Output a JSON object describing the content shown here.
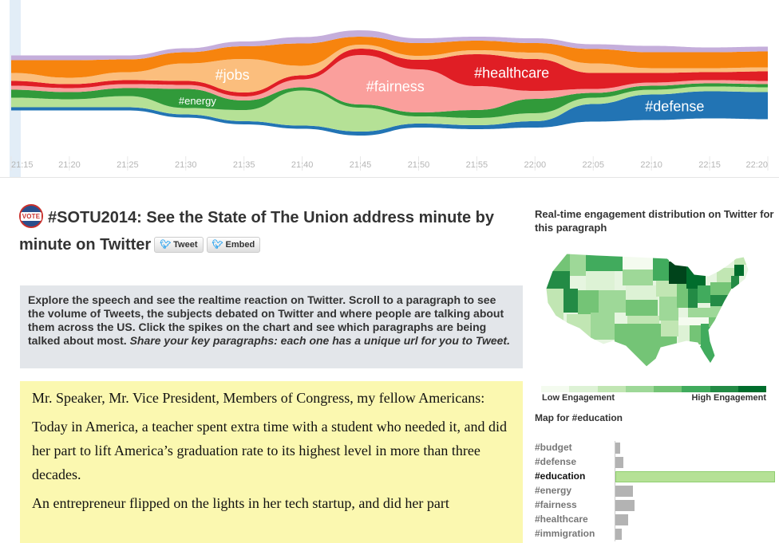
{
  "chart_data": {
    "type": "area",
    "x": [
      "21:15",
      "21:20",
      "21:25",
      "21:30",
      "21:35",
      "21:40",
      "21:45",
      "21:50",
      "21:55",
      "22:00",
      "22:05",
      "22:10",
      "22:15",
      "22:20"
    ],
    "series": [
      {
        "name": "#defense",
        "color": "#2274b4",
        "values": [
          4,
          4,
          4,
          4,
          4,
          4,
          5,
          5,
          5,
          8,
          22,
          32,
          34,
          34
        ]
      },
      {
        "name": "#education",
        "color": "#b5e196",
        "values": [
          12,
          10,
          14,
          8,
          14,
          44,
          30,
          9,
          9,
          10,
          8,
          6,
          6,
          6
        ]
      },
      {
        "name": "#energy",
        "color": "#319a3a",
        "values": [
          10,
          9,
          10,
          24,
          12,
          4,
          4,
          5,
          10,
          18,
          6,
          5,
          4,
          4
        ]
      },
      {
        "name": "#fairness",
        "color": "#fa9f9c",
        "values": [
          5,
          5,
          5,
          5,
          5,
          10,
          62,
          54,
          30,
          10,
          5,
          4,
          4,
          4
        ]
      },
      {
        "name": "#healthcare",
        "color": "#e01e25",
        "values": [
          6,
          5,
          5,
          5,
          5,
          5,
          8,
          12,
          40,
          40,
          20,
          12,
          10,
          12
        ]
      },
      {
        "name": "#jobs",
        "color": "#fbbe7d",
        "values": [
          10,
          8,
          10,
          22,
          42,
          12,
          5,
          5,
          5,
          8,
          12,
          6,
          5,
          5
        ]
      },
      {
        "name": "#budget",
        "color": "#f7840e",
        "values": [
          16,
          22,
          16,
          14,
          16,
          28,
          10,
          16,
          12,
          12,
          18,
          20,
          20,
          20
        ]
      },
      {
        "name": "#immigration",
        "color": "#c5aedb",
        "values": [
          6,
          6,
          5,
          5,
          6,
          8,
          8,
          6,
          5,
          6,
          6,
          8,
          6,
          6
        ]
      }
    ],
    "labels": [
      {
        "text": "#energy",
        "series": "#energy",
        "x": "21:31"
      },
      {
        "text": "#jobs",
        "series": "#jobs",
        "x": "21:34"
      },
      {
        "text": "#fairness",
        "series": "#fairness",
        "x": "21:48"
      },
      {
        "text": "#healthcare",
        "series": "#healthcare",
        "x": "21:58"
      },
      {
        "text": "#defense",
        "series": "#defense",
        "x": "22:12"
      }
    ]
  },
  "header": {
    "badge_text": "VOTE",
    "title": "#SOTU2014: See the State of The Union address minute by minute on Twitter",
    "tweet_label": "Tweet",
    "embed_label": "Embed"
  },
  "intro": {
    "text": "Explore the speech and see the realtime reaction on Twitter. Scroll to a paragraph to see the volume of Tweets, the subjects debated on Twitter and where people are talking about them across the US. Click the spikes on the chart and see which paragraphs are being talked about most. ",
    "emphasis": "Share your key paragraphs: each one has a unique url for you to Tweet."
  },
  "speech": {
    "paragraphs": [
      "Mr. Speaker, Mr. Vice President, Members of Congress, my fellow Americans:",
      "Today in America, a teacher spent extra time with a student who needed it, and did her part to lift America’s graduation rate to its highest level in more than three decades.",
      "An entrepreneur flipped on the lights in her tech startup, and did her part"
    ]
  },
  "sidebar": {
    "title": "Real-time engagement distribution on Twitter for this paragraph",
    "legend_low": "Low Engagement",
    "legend_high": "High Engagement",
    "legend_colors": [
      "#f4fbef",
      "#ddf2d5",
      "#c1e6b3",
      "#9ed898",
      "#74c476",
      "#41ab5d",
      "#238b45",
      "#006d2c"
    ],
    "map_for": "Map for #education",
    "topics": [
      {
        "label": "#budget",
        "share": 0.03,
        "active": false
      },
      {
        "label": "#defense",
        "share": 0.05,
        "active": false
      },
      {
        "label": "#education",
        "share": 1.0,
        "active": true
      },
      {
        "label": "#energy",
        "share": 0.11,
        "active": false
      },
      {
        "label": "#fairness",
        "share": 0.12,
        "active": false
      },
      {
        "label": "#healthcare",
        "share": 0.08,
        "active": false
      },
      {
        "label": "#immigration",
        "share": 0.04,
        "active": false
      }
    ]
  }
}
